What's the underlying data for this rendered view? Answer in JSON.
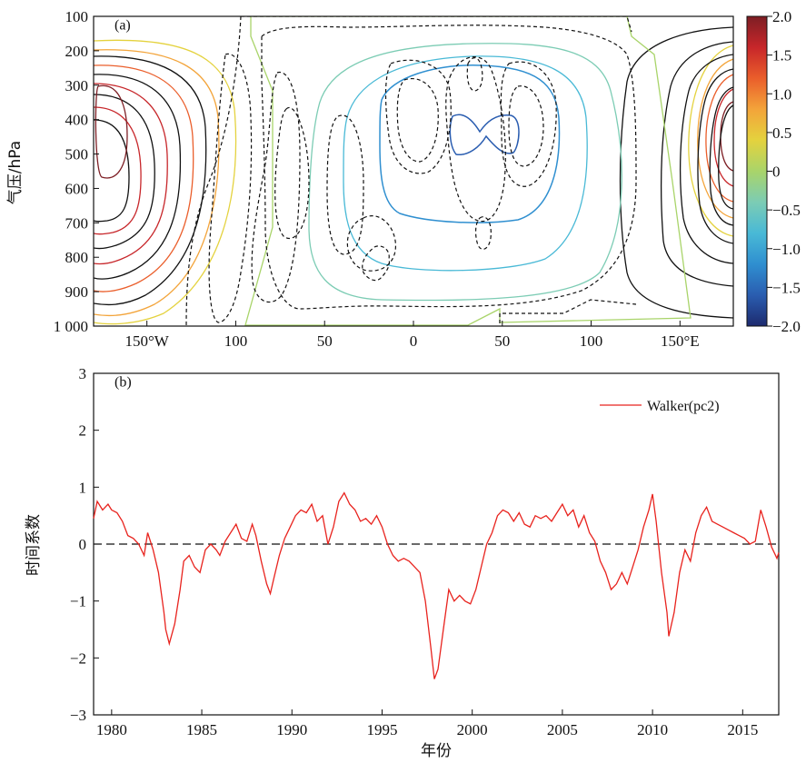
{
  "colors": {
    "series_line": "#e8231e",
    "zero_line": "#111111",
    "contour_negative_dashed": "#111111",
    "contour_positive_black": "#111111",
    "colorbar": [
      "#1d2a6e",
      "#2a5db0",
      "#2f8fd0",
      "#49b9d6",
      "#7cccb4",
      "#a9d46a",
      "#e4d23e",
      "#f3a43a",
      "#ea5e2b",
      "#c7262a",
      "#7d1e24"
    ]
  },
  "chart_data": [
    {
      "panel_label": "(a)",
      "type": "heatmap",
      "ylabel": "气压/hPa",
      "y_ticks": [
        "100",
        "200",
        "300",
        "400",
        "500",
        "600",
        "700",
        "800",
        "900",
        "1 000"
      ],
      "x_ticks": [
        "150°W",
        "100",
        "50",
        "0",
        "50",
        "100",
        "150°E"
      ],
      "colorbar": {
        "ticks": [
          "2.0",
          "1.5",
          "1.0",
          "0.5",
          "0",
          "−0.5",
          "−1.0",
          "−1.5",
          "−2.0"
        ],
        "range": [
          -2.0,
          2.0
        ]
      }
    },
    {
      "panel_label": "(b)",
      "type": "line",
      "ylabel": "时间系数",
      "xlabel": "年份",
      "x_ticks": [
        "1980",
        "1985",
        "1990",
        "1995",
        "2000",
        "2005",
        "2010",
        "2015"
      ],
      "y_ticks": [
        "3",
        "2",
        "1",
        "0",
        "−1",
        "−2",
        "−3"
      ],
      "xlim": [
        1979.0,
        2017.0
      ],
      "ylim": [
        -3,
        3
      ],
      "series": [
        {
          "name": "Walker(pc2)",
          "x": [
            1979.0,
            1979.2,
            1979.5,
            1979.8,
            1980.0,
            1980.3,
            1980.6,
            1980.9,
            1981.2,
            1981.5,
            1981.8,
            1982.0,
            1982.3,
            1982.6,
            1982.9,
            1983.0,
            1983.2,
            1983.5,
            1983.8,
            1984.0,
            1984.3,
            1984.6,
            1984.9,
            1985.2,
            1985.5,
            1985.8,
            1986.0,
            1986.3,
            1986.6,
            1986.9,
            1987.2,
            1987.5,
            1987.8,
            1988.0,
            1988.3,
            1988.6,
            1988.8,
            1989.0,
            1989.3,
            1989.6,
            1989.9,
            1990.2,
            1990.5,
            1990.8,
            1991.1,
            1991.4,
            1991.7,
            1992.0,
            1992.3,
            1992.6,
            1992.9,
            1993.2,
            1993.5,
            1993.8,
            1994.1,
            1994.4,
            1994.7,
            1995.0,
            1995.3,
            1995.6,
            1995.9,
            1996.2,
            1996.5,
            1996.8,
            1997.1,
            1997.4,
            1997.7,
            1997.9,
            1998.1,
            1998.4,
            1998.7,
            1999.0,
            1999.3,
            1999.6,
            1999.9,
            2000.2,
            2000.5,
            2000.8,
            2001.1,
            2001.4,
            2001.7,
            2002.0,
            2002.3,
            2002.6,
            2002.9,
            2003.2,
            2003.5,
            2003.8,
            2004.1,
            2004.4,
            2004.7,
            2005.0,
            2005.3,
            2005.6,
            2005.9,
            2006.2,
            2006.5,
            2006.8,
            2007.1,
            2007.4,
            2007.7,
            2008.0,
            2008.3,
            2008.6,
            2008.9,
            2009.2,
            2009.5,
            2009.8,
            2010.0,
            2010.2,
            2010.5,
            2010.8,
            2010.9,
            2011.2,
            2011.5,
            2011.8,
            2012.1,
            2012.4,
            2012.7,
            2013.0,
            2013.3,
            2013.6,
            2013.9,
            2014.2,
            2014.5,
            2014.8,
            2015.1,
            2015.4,
            2015.7,
            2016.0,
            2016.3,
            2016.6,
            2016.9,
            2017.0
          ],
          "y": [
            0.45,
            0.75,
            0.6,
            0.7,
            0.6,
            0.55,
            0.4,
            0.15,
            0.1,
            0.0,
            -0.2,
            0.2,
            -0.1,
            -0.5,
            -1.2,
            -1.5,
            -1.75,
            -1.4,
            -0.8,
            -0.3,
            -0.2,
            -0.4,
            -0.5,
            -0.1,
            0.0,
            -0.1,
            -0.2,
            0.05,
            0.2,
            0.35,
            0.1,
            0.05,
            0.35,
            0.15,
            -0.3,
            -0.7,
            -0.87,
            -0.6,
            -0.2,
            0.1,
            0.3,
            0.5,
            0.6,
            0.55,
            0.7,
            0.4,
            0.5,
            0.0,
            0.3,
            0.75,
            0.9,
            0.7,
            0.6,
            0.4,
            0.45,
            0.35,
            0.5,
            0.3,
            0.0,
            -0.2,
            -0.3,
            -0.25,
            -0.3,
            -0.4,
            -0.5,
            -1.0,
            -1.8,
            -2.37,
            -2.2,
            -1.5,
            -0.8,
            -1.0,
            -0.9,
            -1.0,
            -1.05,
            -0.8,
            -0.4,
            0.0,
            0.2,
            0.5,
            0.6,
            0.55,
            0.4,
            0.55,
            0.35,
            0.3,
            0.5,
            0.45,
            0.5,
            0.4,
            0.55,
            0.7,
            0.5,
            0.6,
            0.3,
            0.5,
            0.2,
            0.05,
            -0.3,
            -0.5,
            -0.8,
            -0.7,
            -0.5,
            -0.7,
            -0.4,
            -0.1,
            0.3,
            0.6,
            0.88,
            0.4,
            -0.5,
            -1.2,
            -1.62,
            -1.2,
            -0.5,
            -0.1,
            -0.3,
            0.2,
            0.5,
            0.65,
            0.4,
            0.35,
            0.3,
            0.25,
            0.2,
            0.15,
            0.1,
            0.0,
            0.05,
            0.6,
            0.3,
            -0.05,
            -0.25,
            -0.15
          ]
        }
      ]
    }
  ]
}
